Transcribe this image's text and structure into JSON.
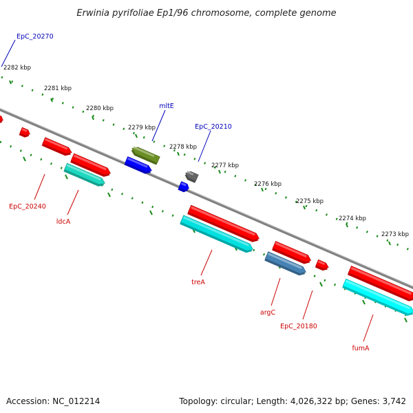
{
  "title": "Erwinia pyrifoliae Ep1/96 chromosome, complete genome",
  "footer": {
    "accession": "Accession: NC_012214",
    "summary": "Topology: circular; Length: 4,026,322 bp; Genes: 3,742"
  },
  "colors": {
    "backbone": "#808080",
    "tick": "#1a8a1a",
    "label_blue": "#0000bb",
    "label_red": "#cc0000",
    "gene_red": "#ff0000",
    "gene_blue": "#0000ff",
    "gene_olive": "#6b8e23",
    "gene_gray": "#666666",
    "gene_steel": "#4682b4",
    "gene_cyan": "#00e0e0",
    "gene_teal": "#1dd8c0",
    "gene_aqua": "#00ffff"
  },
  "scale_labels": [
    "2282 kbp",
    "2281 kbp",
    "2280 kbp",
    "2279 kbp",
    "2278 kbp",
    "2277 kbp",
    "2276 kbp",
    "2275 kbp",
    "2274 kbp",
    "2273 kbp"
  ],
  "labels": [
    {
      "name": "label-epc-20270",
      "text": "EpC_20270",
      "color": "label_blue"
    },
    {
      "name": "label-mlte",
      "text": "mltE",
      "color": "label_blue"
    },
    {
      "name": "label-epc-20210",
      "text": "EpC_20210",
      "color": "label_blue"
    },
    {
      "name": "label-epc-20240",
      "text": "EpC_20240",
      "color": "label_red"
    },
    {
      "name": "label-ldca",
      "text": "ldcA",
      "color": "label_red"
    },
    {
      "name": "label-trea",
      "text": "treA",
      "color": "label_red"
    },
    {
      "name": "label-argc",
      "text": "argC",
      "color": "label_red"
    },
    {
      "name": "label-epc-20180",
      "text": "EpC_20180",
      "color": "label_red"
    },
    {
      "name": "label-fuma",
      "text": "fumA",
      "color": "label_red"
    }
  ],
  "genes": [
    {
      "name": "gene-red-1",
      "color": "gene_red"
    },
    {
      "name": "gene-red-2",
      "color": "gene_red"
    },
    {
      "name": "gene-red-3",
      "color": "gene_red"
    },
    {
      "name": "gene-teal-ldca",
      "color": "gene_teal"
    },
    {
      "name": "gene-olive-mlte",
      "color": "gene_olive"
    },
    {
      "name": "gene-blue-1",
      "color": "gene_blue"
    },
    {
      "name": "gene-gray-epc-20210",
      "color": "gene_gray"
    },
    {
      "name": "gene-blue-2",
      "color": "gene_blue"
    },
    {
      "name": "gene-red-4",
      "color": "gene_red"
    },
    {
      "name": "gene-cyan-trea",
      "color": "gene_cyan"
    },
    {
      "name": "gene-red-5",
      "color": "gene_red"
    },
    {
      "name": "gene-steel-argc",
      "color": "gene_steel"
    },
    {
      "name": "gene-red-6",
      "color": "gene_red"
    },
    {
      "name": "gene-red-7",
      "color": "gene_red"
    },
    {
      "name": "gene-aqua-fuma",
      "color": "gene_aqua"
    },
    {
      "name": "gene-red-edge",
      "color": "gene_red"
    }
  ]
}
